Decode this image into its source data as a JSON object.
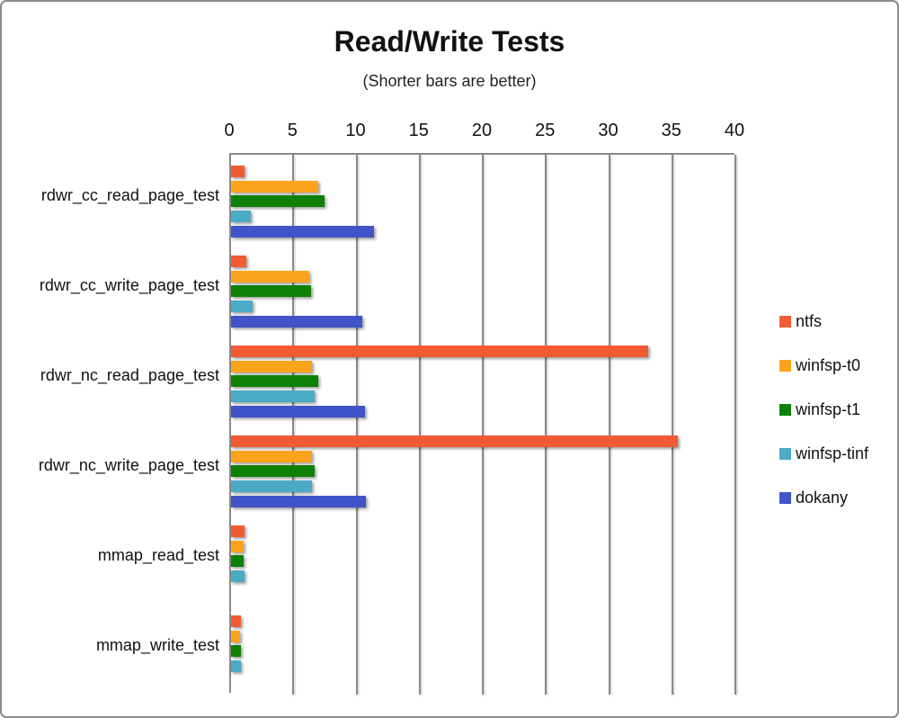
{
  "title": "Read/Write Tests",
  "subtitle": "(Shorter bars are better)",
  "chart_data": {
    "type": "bar",
    "orientation": "horizontal",
    "title": "Read/Write Tests",
    "subtitle": "(Shorter bars are better)",
    "categories": [
      "rdwr_cc_read_page_test",
      "rdwr_cc_write_page_test",
      "rdwr_nc_read_page_test",
      "rdwr_nc_write_page_test",
      "mmap_read_test",
      "mmap_write_test"
    ],
    "series": [
      {
        "name": "ntfs",
        "color": "#F15B33",
        "values": [
          1.1,
          1.2,
          33.0,
          35.4,
          1.05,
          0.75
        ]
      },
      {
        "name": "winfsp-t0",
        "color": "#FAA41E",
        "values": [
          6.9,
          6.2,
          6.4,
          6.4,
          1.0,
          0.7
        ]
      },
      {
        "name": "winfsp-t1",
        "color": "#0E8004",
        "values": [
          7.4,
          6.3,
          6.9,
          6.6,
          1.0,
          0.8
        ]
      },
      {
        "name": "winfsp-tinf",
        "color": "#4BAAC4",
        "values": [
          1.6,
          1.7,
          6.6,
          6.4,
          1.05,
          0.75
        ]
      },
      {
        "name": "dokany",
        "color": "#4053C8",
        "values": [
          11.3,
          10.4,
          10.6,
          10.7,
          0,
          0
        ]
      }
    ],
    "xlim": [
      0,
      40
    ],
    "xticks": [
      0,
      5,
      10,
      15,
      20,
      25,
      30,
      35,
      40
    ],
    "grid": true,
    "legend_position": "right",
    "axis_color": "#8a8a8a"
  }
}
